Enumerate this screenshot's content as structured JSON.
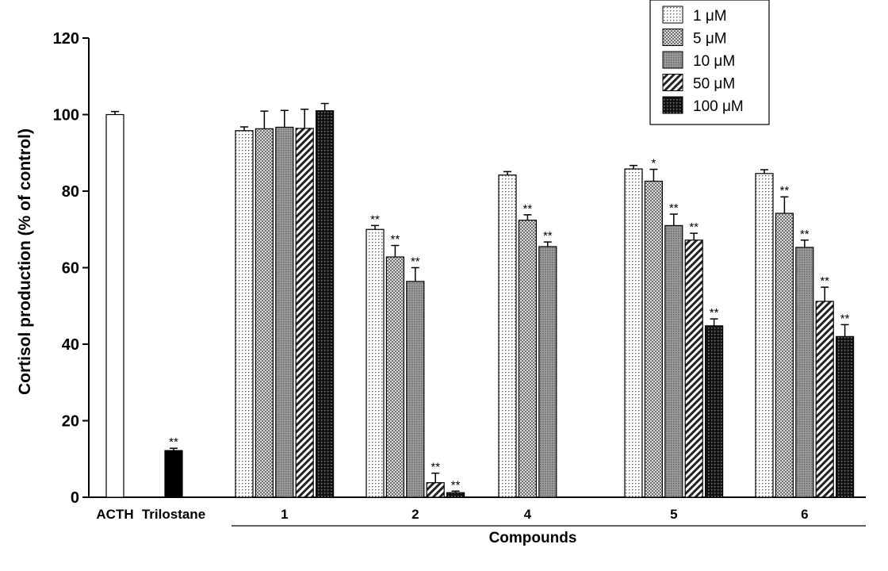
{
  "chart_data": {
    "type": "bar",
    "ylabel": "Cortisol production (% of control)",
    "xlabel": "Compounds",
    "ylim": [
      0,
      120
    ],
    "yticks": [
      0,
      20,
      40,
      60,
      80,
      100,
      120
    ],
    "legend_placement": "top-right",
    "concentrations": [
      "1 μM",
      "5 μM",
      "10 μM",
      "50 μM",
      "100 μM"
    ],
    "controls": [
      {
        "label": "ACTH",
        "value": 100.0,
        "error": 0.8,
        "sig": ""
      },
      {
        "label": "Trilostane",
        "value": 12.2,
        "error": 0.6,
        "sig": "**"
      }
    ],
    "groups": [
      {
        "label": "1",
        "values": [
          95.8,
          96.3,
          96.7,
          96.4,
          101.0
        ],
        "errors": [
          1.0,
          4.6,
          4.4,
          5.0,
          1.9
        ],
        "sig": [
          "",
          "",
          "",
          "",
          ""
        ]
      },
      {
        "label": "2",
        "values": [
          70.0,
          62.8,
          56.4,
          3.8,
          1.2
        ],
        "errors": [
          1.0,
          3.0,
          3.6,
          2.5,
          0.4
        ],
        "sig": [
          "**",
          "**",
          "**",
          "**",
          "**"
        ]
      },
      {
        "label": "4",
        "values": [
          84.2,
          72.4,
          65.5
        ],
        "errors": [
          0.9,
          1.4,
          1.2
        ],
        "sig": [
          "",
          "**",
          "**"
        ]
      },
      {
        "label": "5",
        "values": [
          85.8,
          82.6,
          71.0,
          67.2,
          44.8
        ],
        "errors": [
          0.9,
          3.1,
          3.0,
          1.8,
          1.8
        ],
        "sig": [
          "",
          "*",
          "**",
          "**",
          "**"
        ]
      },
      {
        "label": "6",
        "values": [
          84.6,
          74.2,
          65.3,
          51.2,
          42.0
        ],
        "errors": [
          1.0,
          4.3,
          1.9,
          3.7,
          3.1
        ],
        "sig": [
          "",
          "**",
          "**",
          "**",
          "**"
        ]
      }
    ]
  }
}
